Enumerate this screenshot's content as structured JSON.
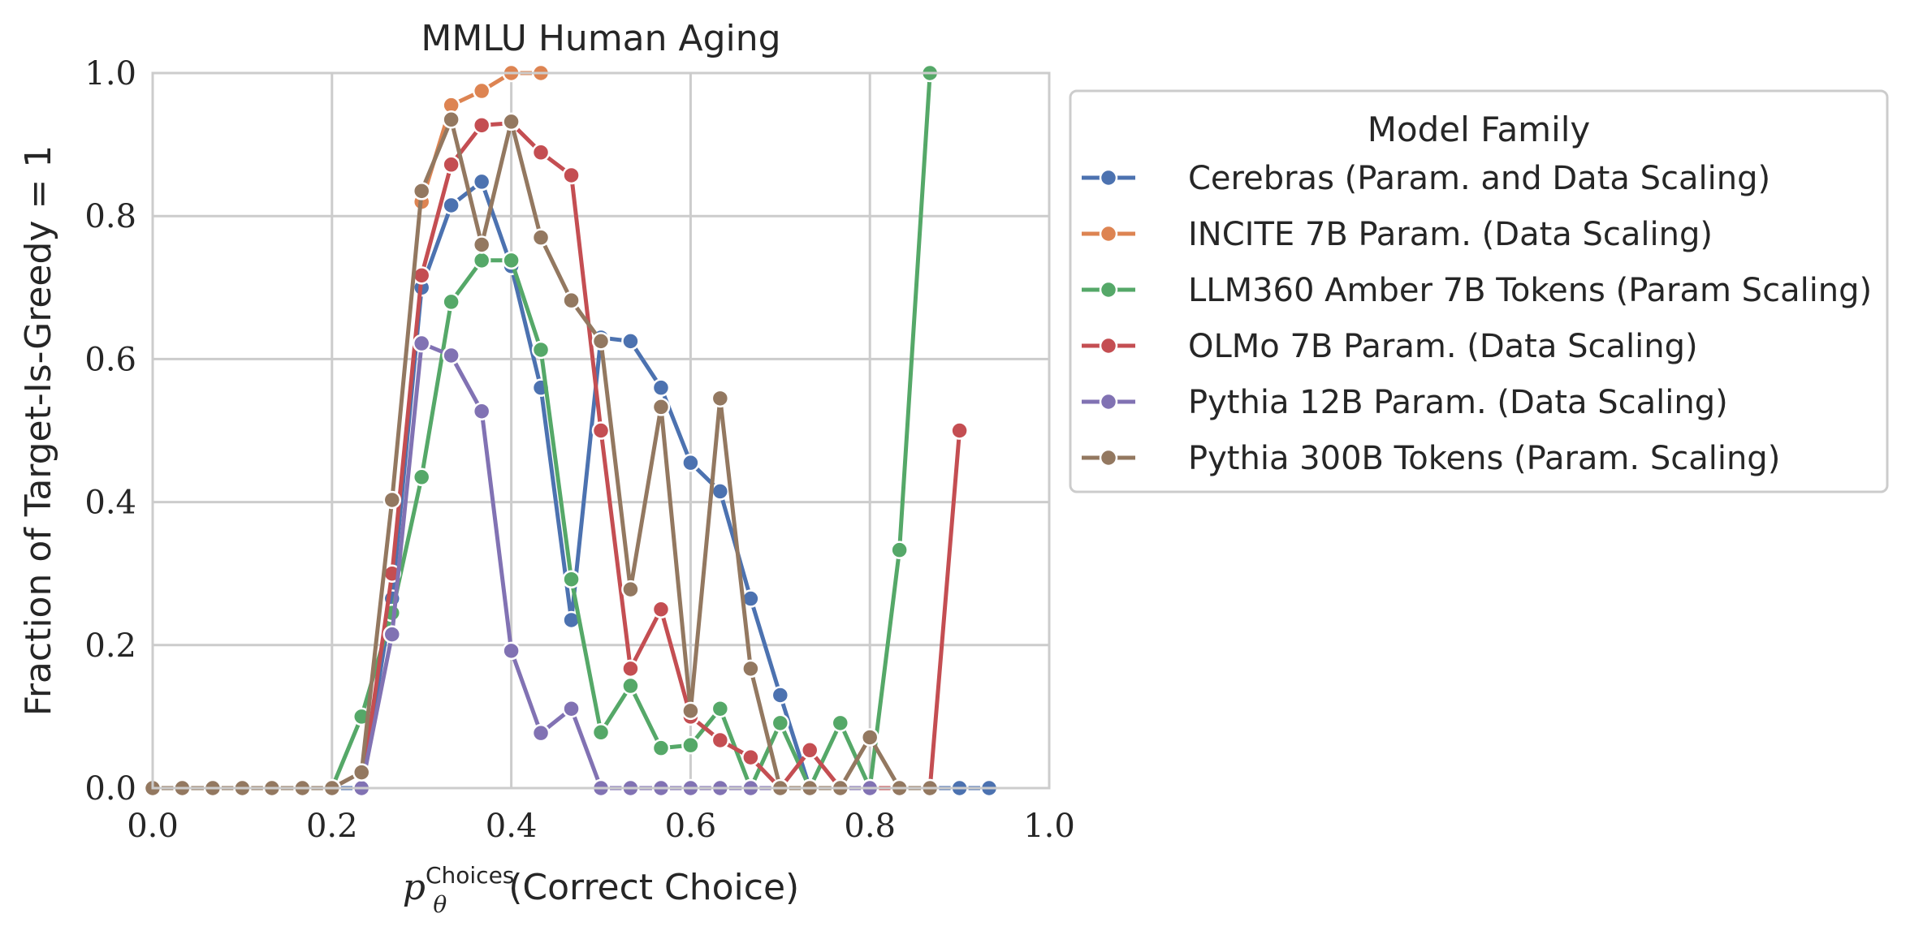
{
  "chart_data": {
    "type": "line",
    "title": "MMLU Human Aging",
    "xlabel": "p_θ^Choices(Correct Choice)",
    "xlabel_parts": {
      "p": "p",
      "sub": "θ",
      "sup": "Choices",
      "rest": "(Correct Choice)"
    },
    "ylabel": "Fraction of Target-Is-Greedy = 1",
    "xlim": [
      0.0,
      1.0
    ],
    "ylim": [
      0.0,
      1.0
    ],
    "xticks": [
      "0.0",
      "0.2",
      "0.4",
      "0.6",
      "0.8",
      "1.0"
    ],
    "yticks": [
      "0.0",
      "0.2",
      "0.4",
      "0.6",
      "0.8",
      "1.0"
    ],
    "grid": true,
    "legend": {
      "title": "Model Family",
      "placement": "outside-right-top"
    },
    "series": [
      {
        "name": "Cerebras (Param. and Data Scaling)",
        "color": "#4c72b0",
        "points": [
          [
            0.0,
            0.0
          ],
          [
            0.033,
            0.0
          ],
          [
            0.067,
            0.0
          ],
          [
            0.1,
            0.0
          ],
          [
            0.133,
            0.0
          ],
          [
            0.167,
            0.0
          ],
          [
            0.2,
            0.0
          ],
          [
            0.233,
            0.0
          ],
          [
            0.267,
            0.265
          ],
          [
            0.3,
            0.7
          ],
          [
            0.333,
            0.815
          ],
          [
            0.367,
            0.848
          ],
          [
            0.4,
            0.73
          ],
          [
            0.433,
            0.56
          ],
          [
            0.467,
            0.235
          ],
          [
            0.5,
            0.63
          ],
          [
            0.533,
            0.625
          ],
          [
            0.567,
            0.56
          ],
          [
            0.6,
            0.455
          ],
          [
            0.633,
            0.415
          ],
          [
            0.667,
            0.265
          ],
          [
            0.7,
            0.13
          ],
          [
            0.733,
            0.0
          ],
          [
            0.767,
            0.0
          ],
          [
            0.8,
            0.0
          ],
          [
            0.833,
            0.0
          ],
          [
            0.867,
            0.0
          ],
          [
            0.9,
            0.0
          ],
          [
            0.933,
            0.0
          ]
        ]
      },
      {
        "name": "INCITE 7B Param. (Data Scaling)",
        "color": "#dd8452",
        "points": [
          [
            0.3,
            0.82
          ],
          [
            0.333,
            0.955
          ],
          [
            0.367,
            0.975
          ],
          [
            0.4,
            1.0
          ],
          [
            0.433,
            1.0
          ]
        ]
      },
      {
        "name": "LLM360 Amber 7B Tokens (Param Scaling)",
        "color": "#55a868",
        "points": [
          [
            0.2,
            0.0
          ],
          [
            0.233,
            0.1
          ],
          [
            0.267,
            0.245
          ],
          [
            0.3,
            0.435
          ],
          [
            0.333,
            0.68
          ],
          [
            0.367,
            0.738
          ],
          [
            0.4,
            0.738
          ],
          [
            0.433,
            0.613
          ],
          [
            0.467,
            0.292
          ],
          [
            0.5,
            0.078
          ],
          [
            0.533,
            0.143
          ],
          [
            0.567,
            0.056
          ],
          [
            0.6,
            0.06
          ],
          [
            0.633,
            0.111
          ],
          [
            0.667,
            0.0
          ],
          [
            0.7,
            0.091
          ],
          [
            0.733,
            0.0
          ],
          [
            0.767,
            0.091
          ],
          [
            0.8,
            0.0
          ],
          [
            0.833,
            0.333
          ],
          [
            0.867,
            1.0
          ]
        ]
      },
      {
        "name": "OLMo 7B Param. (Data Scaling)",
        "color": "#c44e52",
        "points": [
          [
            0.233,
            0.0
          ],
          [
            0.267,
            0.3
          ],
          [
            0.3,
            0.717
          ],
          [
            0.333,
            0.872
          ],
          [
            0.367,
            0.927
          ],
          [
            0.4,
            0.93
          ],
          [
            0.433,
            0.889
          ],
          [
            0.467,
            0.857
          ],
          [
            0.5,
            0.5
          ],
          [
            0.533,
            0.167
          ],
          [
            0.567,
            0.25
          ],
          [
            0.6,
            0.1
          ],
          [
            0.633,
            0.067
          ],
          [
            0.667,
            0.043
          ],
          [
            0.7,
            0.0
          ],
          [
            0.733,
            0.053
          ],
          [
            0.767,
            0.0
          ],
          [
            0.8,
            0.0
          ],
          [
            0.833,
            0.0
          ],
          [
            0.867,
            0.0
          ],
          [
            0.9,
            0.5
          ]
        ]
      },
      {
        "name": "Pythia 12B Param. (Data Scaling)",
        "color": "#8172b3",
        "points": [
          [
            0.233,
            0.0
          ],
          [
            0.267,
            0.215
          ],
          [
            0.3,
            0.622
          ],
          [
            0.333,
            0.605
          ],
          [
            0.367,
            0.527
          ],
          [
            0.4,
            0.192
          ],
          [
            0.433,
            0.077
          ],
          [
            0.467,
            0.111
          ],
          [
            0.5,
            0.0
          ],
          [
            0.533,
            0.0
          ],
          [
            0.567,
            0.0
          ],
          [
            0.6,
            0.0
          ],
          [
            0.633,
            0.0
          ],
          [
            0.667,
            0.0
          ],
          [
            0.7,
            0.0
          ],
          [
            0.733,
            0.0
          ],
          [
            0.767,
            0.0
          ],
          [
            0.8,
            0.0
          ]
        ]
      },
      {
        "name": "Pythia 300B Tokens (Param. Scaling)",
        "color": "#937860",
        "points": [
          [
            0.0,
            0.0
          ],
          [
            0.033,
            0.0
          ],
          [
            0.067,
            0.0
          ],
          [
            0.1,
            0.0
          ],
          [
            0.133,
            0.0
          ],
          [
            0.167,
            0.0
          ],
          [
            0.2,
            0.0
          ],
          [
            0.233,
            0.022
          ],
          [
            0.267,
            0.403
          ],
          [
            0.3,
            0.835
          ],
          [
            0.333,
            0.935
          ],
          [
            0.367,
            0.76
          ],
          [
            0.4,
            0.932
          ],
          [
            0.433,
            0.77
          ],
          [
            0.467,
            0.682
          ],
          [
            0.5,
            0.625
          ],
          [
            0.533,
            0.278
          ],
          [
            0.567,
            0.533
          ],
          [
            0.6,
            0.108
          ],
          [
            0.633,
            0.545
          ],
          [
            0.667,
            0.167
          ],
          [
            0.7,
            0.0
          ],
          [
            0.733,
            0.0
          ],
          [
            0.767,
            0.0
          ],
          [
            0.8,
            0.071
          ],
          [
            0.833,
            0.0
          ],
          [
            0.867,
            0.0
          ]
        ]
      }
    ]
  }
}
